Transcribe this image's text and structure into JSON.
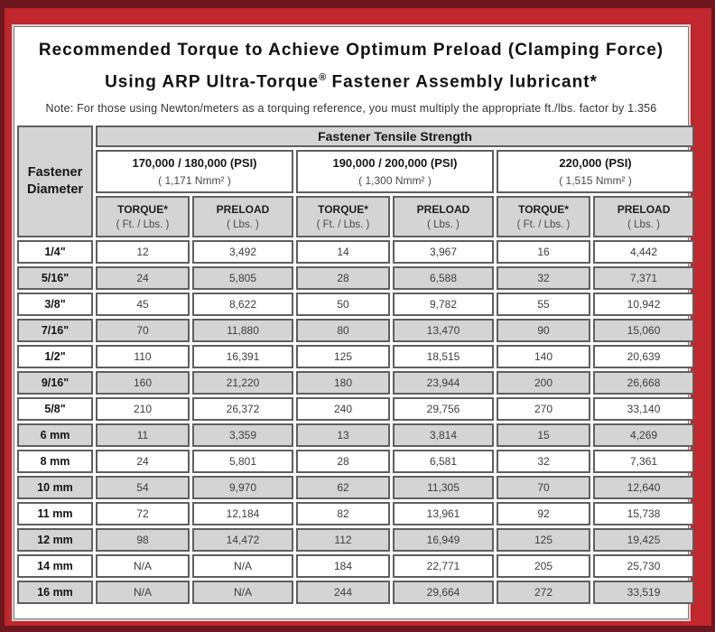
{
  "colors": {
    "frame_red": "#c1272d",
    "frame_maroon": "#6c161d",
    "cell_gray": "#d4d4d4",
    "cell_border_gray": "#5f5f5f"
  },
  "header": {
    "title_line1": "Recommended Torque to Achieve Optimum Preload (Clamping Force)",
    "title_line2_pre": "Using ARP Ultra-Torque",
    "title_registered": "®",
    "title_line2_post": " Fastener Assembly lubricant*",
    "note": "Note: For those using Newton/meters as a torquing reference, you must multiply the appropriate ft./lbs. factor by 1.356"
  },
  "chart_data": {
    "type": "table",
    "title": "Recommended Torque to Achieve Optimum Preload (Clamping Force) Using ARP Ultra-Torque® Fastener Assembly lubricant*",
    "group_header": "Fastener Tensile Strength",
    "corner": {
      "line1": "Fastener",
      "line2": "Diameter"
    },
    "strength_groups": [
      {
        "psi": "170,000 / 180,000 (PSI)",
        "nmm": "( 1,171 Nmm² )"
      },
      {
        "psi": "190,000 / 200,000 (PSI)",
        "nmm": "( 1,300 Nmm² )"
      },
      {
        "psi": "220,000 (PSI)",
        "nmm": "( 1,515 Nmm² )"
      }
    ],
    "sub_columns": {
      "torque": {
        "label": "TORQUE*",
        "unit": "( Ft. / Lbs. )"
      },
      "preload": {
        "label": "PRELOAD",
        "unit": "( Lbs. )"
      }
    },
    "rows": [
      {
        "diameter": "1/4\"",
        "values": [
          "12",
          "3,492",
          "14",
          "3,967",
          "16",
          "4,442"
        ]
      },
      {
        "diameter": "5/16\"",
        "values": [
          "24",
          "5,805",
          "28",
          "6,588",
          "32",
          "7,371"
        ]
      },
      {
        "diameter": "3/8\"",
        "values": [
          "45",
          "8,622",
          "50",
          "9,782",
          "55",
          "10,942"
        ]
      },
      {
        "diameter": "7/16\"",
        "values": [
          "70",
          "11,880",
          "80",
          "13,470",
          "90",
          "15,060"
        ]
      },
      {
        "diameter": "1/2\"",
        "values": [
          "110",
          "16,391",
          "125",
          "18,515",
          "140",
          "20,639"
        ]
      },
      {
        "diameter": "9/16\"",
        "values": [
          "160",
          "21,220",
          "180",
          "23,944",
          "200",
          "26,668"
        ]
      },
      {
        "diameter": "5/8\"",
        "values": [
          "210",
          "26,372",
          "240",
          "29,756",
          "270",
          "33,140"
        ]
      },
      {
        "diameter": "6 mm",
        "values": [
          "11",
          "3,359",
          "13",
          "3,814",
          "15",
          "4,269"
        ]
      },
      {
        "diameter": "8 mm",
        "values": [
          "24",
          "5,801",
          "28",
          "6,581",
          "32",
          "7,361"
        ]
      },
      {
        "diameter": "10 mm",
        "values": [
          "54",
          "9,970",
          "62",
          "11,305",
          "70",
          "12,640"
        ]
      },
      {
        "diameter": "11 mm",
        "values": [
          "72",
          "12,184",
          "82",
          "13,961",
          "92",
          "15,738"
        ]
      },
      {
        "diameter": "12 mm",
        "values": [
          "98",
          "14,472",
          "112",
          "16,949",
          "125",
          "19,425"
        ]
      },
      {
        "diameter": "14 mm",
        "values": [
          "N/A",
          "N/A",
          "184",
          "22,771",
          "205",
          "25,730"
        ]
      },
      {
        "diameter": "16 mm",
        "values": [
          "N/A",
          "N/A",
          "244",
          "29,664",
          "272",
          "33,519"
        ]
      }
    ]
  }
}
